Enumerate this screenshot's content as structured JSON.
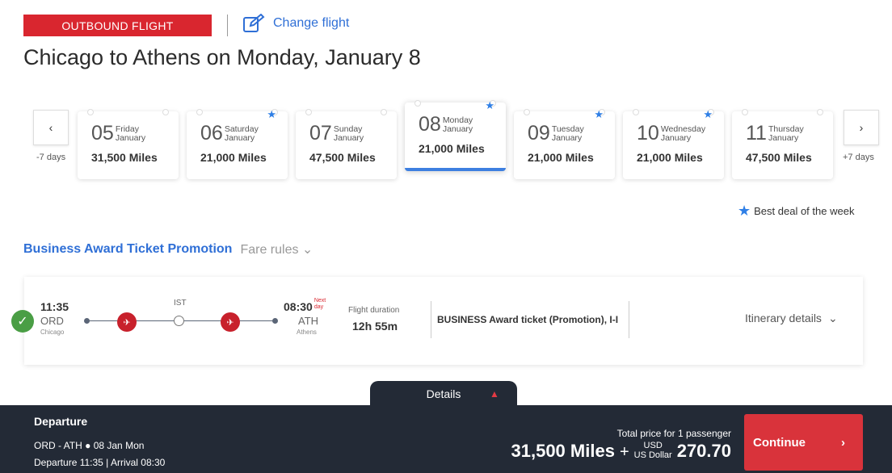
{
  "header": {
    "badge": "OUTBOUND FLIGHT",
    "change_flight": "Change flight",
    "title": "Chicago to Athens on Monday, January 8"
  },
  "dates": {
    "prev_label": "-7 days",
    "next_label": "+7 days",
    "items": [
      {
        "day": "05",
        "weekday": "Friday",
        "month": "January",
        "miles": "31,500 Miles",
        "best": false,
        "selected": false
      },
      {
        "day": "06",
        "weekday": "Saturday",
        "month": "January",
        "miles": "21,000 Miles",
        "best": true,
        "selected": false
      },
      {
        "day": "07",
        "weekday": "Sunday",
        "month": "January",
        "miles": "47,500 Miles",
        "best": false,
        "selected": false
      },
      {
        "day": "08",
        "weekday": "Monday",
        "month": "January",
        "miles": "21,000 Miles",
        "best": true,
        "selected": true
      },
      {
        "day": "09",
        "weekday": "Tuesday",
        "month": "January",
        "miles": "21,000 Miles",
        "best": true,
        "selected": false
      },
      {
        "day": "10",
        "weekday": "Wednesday",
        "month": "January",
        "miles": "21,000 Miles",
        "best": true,
        "selected": false
      },
      {
        "day": "11",
        "weekday": "Thursday",
        "month": "January",
        "miles": "47,500 Miles",
        "best": false,
        "selected": false
      }
    ]
  },
  "legend": {
    "best_deal": "Best deal of the week"
  },
  "promo": {
    "title": "Business Award Ticket Promotion",
    "fare_rules": "Fare rules"
  },
  "flight": {
    "dep_time": "11:35",
    "dep_code": "ORD",
    "dep_city": "Chicago",
    "stop": "IST",
    "arr_time": "08:30",
    "next_day": "Next day",
    "arr_code": "ATH",
    "arr_city": "Athens",
    "duration_label": "Flight duration",
    "duration": "12h 55m",
    "fare": "BUSINESS Award ticket (Promotion), I-I",
    "itinerary": "Itinerary details"
  },
  "footer": {
    "details_tab": "Details",
    "departure_label": "Departure",
    "route": "ORD - ATH",
    "date": "08 Jan Mon",
    "times": "Departure 11:35 | Arrival 08:30",
    "total_label": "Total price for 1 passenger",
    "miles": "31,500 Miles",
    "plus": "+",
    "currency_code": "USD",
    "currency_name": "US Dollar",
    "amount": "270.70",
    "continue": "Continue"
  },
  "colors": {
    "brand_red": "#d9262f",
    "accent_blue": "#2f6fd6",
    "footer_bg": "#232a36"
  }
}
